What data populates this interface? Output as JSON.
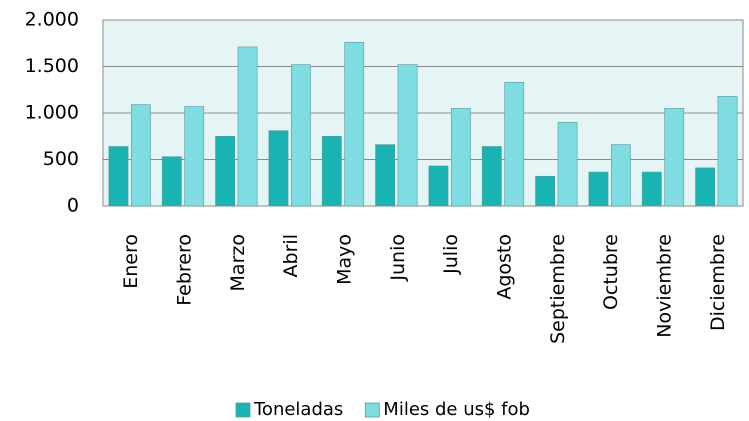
{
  "chart_data": {
    "type": "bar",
    "categories": [
      "Enero",
      "Febrero",
      "Marzo",
      "Abril",
      "Mayo",
      "Junio",
      "Julio",
      "Agosto",
      "Septiembre",
      "Octubre",
      "Noviembre",
      "Diciembre"
    ],
    "series": [
      {
        "name": "Toneladas",
        "color": "#1ab3b4",
        "values": [
          640,
          530,
          750,
          810,
          750,
          660,
          430,
          640,
          320,
          365,
          365,
          410
        ]
      },
      {
        "name": "Miles de us$ fob",
        "color": "#7fdce0",
        "values": [
          1090,
          1070,
          1710,
          1520,
          1760,
          1520,
          1050,
          1330,
          900,
          660,
          1050,
          1180
        ]
      }
    ],
    "ylim": [
      0,
      2000
    ],
    "yticks": [
      0,
      500,
      {
        "value": 1000,
        "label": "1.000"
      },
      {
        "value": 1500,
        "label": "1.500"
      },
      {
        "value": 2000,
        "label": "2.000"
      }
    ],
    "grid": true,
    "legend": "bottom"
  }
}
